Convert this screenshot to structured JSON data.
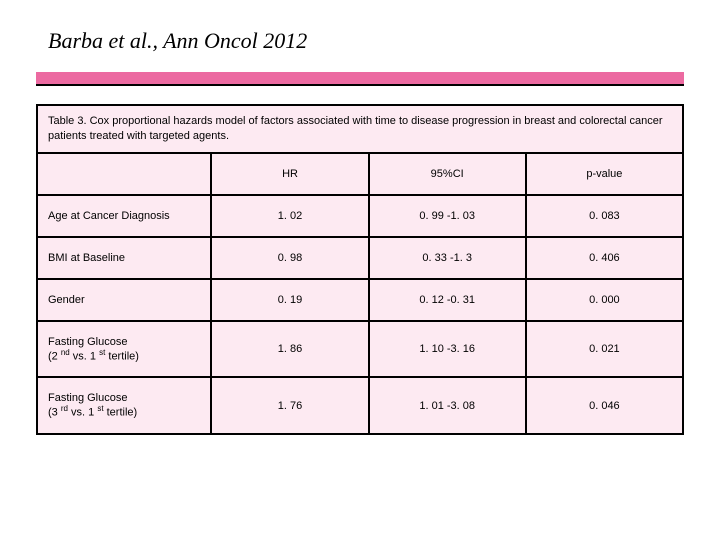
{
  "slide": {
    "title": "Barba et al., Ann Oncol 2012",
    "accent_color": "#ec6aa1",
    "table_bg": "#fdeaf2"
  },
  "table": {
    "caption": "Table 3. Cox proportional hazards model of factors associated with time to disease progression in breast and colorectal cancer patients treated with targeted agents.",
    "columns": [
      "",
      "HR",
      "95%CI",
      "p-value"
    ],
    "rows": [
      {
        "label": "Age at Cancer Diagnosis",
        "label_html": "Age at Cancer Diagnosis",
        "hr": "1. 02",
        "ci": "0. 99 -1. 03",
        "p": "0. 083"
      },
      {
        "label": "BMI at Baseline",
        "label_html": "BMI at Baseline",
        "hr": "0. 98",
        "ci": "0. 33 -1. 3",
        "p": "0. 406"
      },
      {
        "label": "Gender",
        "label_html": "Gender",
        "hr": "0. 19",
        "ci": "0. 12 -0. 31",
        "p": "0. 000"
      },
      {
        "label": "Fasting Glucose (2nd vs. 1st tertile)",
        "label_html": "Fasting Glucose<br>(2 <span class=\"sup\">nd</span> vs. 1 <span class=\"sup\">st</span> tertile)",
        "hr": "1. 86",
        "ci": "1. 10 -3. 16",
        "p": "0. 021"
      },
      {
        "label": "Fasting Glucose (3rd vs. 1st tertile)",
        "label_html": "Fasting Glucose<br>(3 <span class=\"sup\">rd</span> vs. 1 <span class=\"sup\">st</span> tertile)",
        "hr": "1. 76",
        "ci": "1. 01 -3. 08",
        "p": "0. 046"
      }
    ]
  }
}
